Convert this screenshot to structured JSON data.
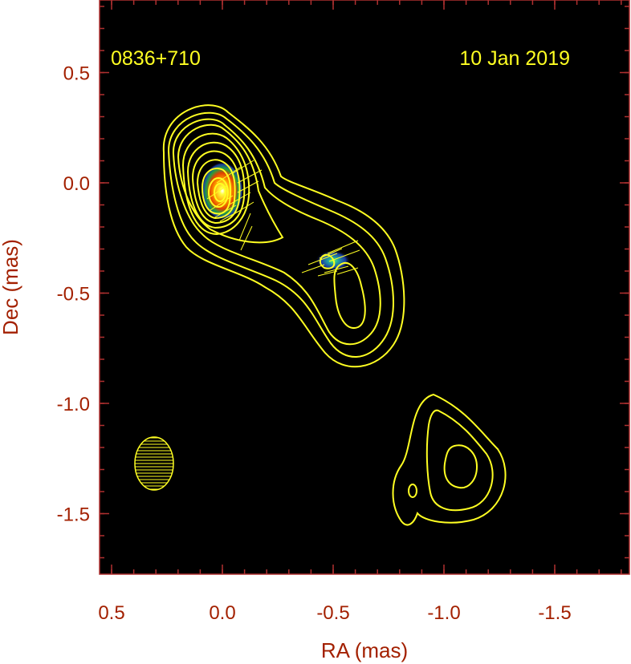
{
  "chart_data": {
    "type": "contour",
    "source_name": "0836+710",
    "date_label": "10 Jan 2019",
    "xlabel": "RA (mas)",
    "ylabel": "Dec (mas)",
    "xlim": [
      0.5,
      -1.8
    ],
    "ylim": [
      -1.75,
      0.8
    ],
    "x_reversed": true,
    "xticks": [
      0.5,
      0.0,
      -0.5,
      -1.0,
      -1.5
    ],
    "xtick_labels": [
      "0.5",
      "0.0",
      "-0.5",
      "-1.0",
      "-1.5"
    ],
    "yticks": [
      0.5,
      0.0,
      -0.5,
      -1.0,
      -1.5
    ],
    "ytick_labels": [
      "0.5",
      "0.0",
      "-0.5",
      "-1.0",
      "-1.5"
    ],
    "colors": {
      "background": "#000000",
      "frame": "#b03030",
      "tick_text": "#a32000",
      "contour": "#ffff22"
    },
    "components": [
      {
        "name": "core",
        "ra": -0.01,
        "dec": -0.04,
        "peak": "bright"
      },
      {
        "name": "knot",
        "ra": -0.52,
        "dec": -0.35,
        "peak": "faint"
      }
    ],
    "beam": {
      "ra": 0.3,
      "dec": -1.27,
      "major_mas": 0.16,
      "minor_mas": 0.12,
      "pa_deg": 0
    }
  }
}
